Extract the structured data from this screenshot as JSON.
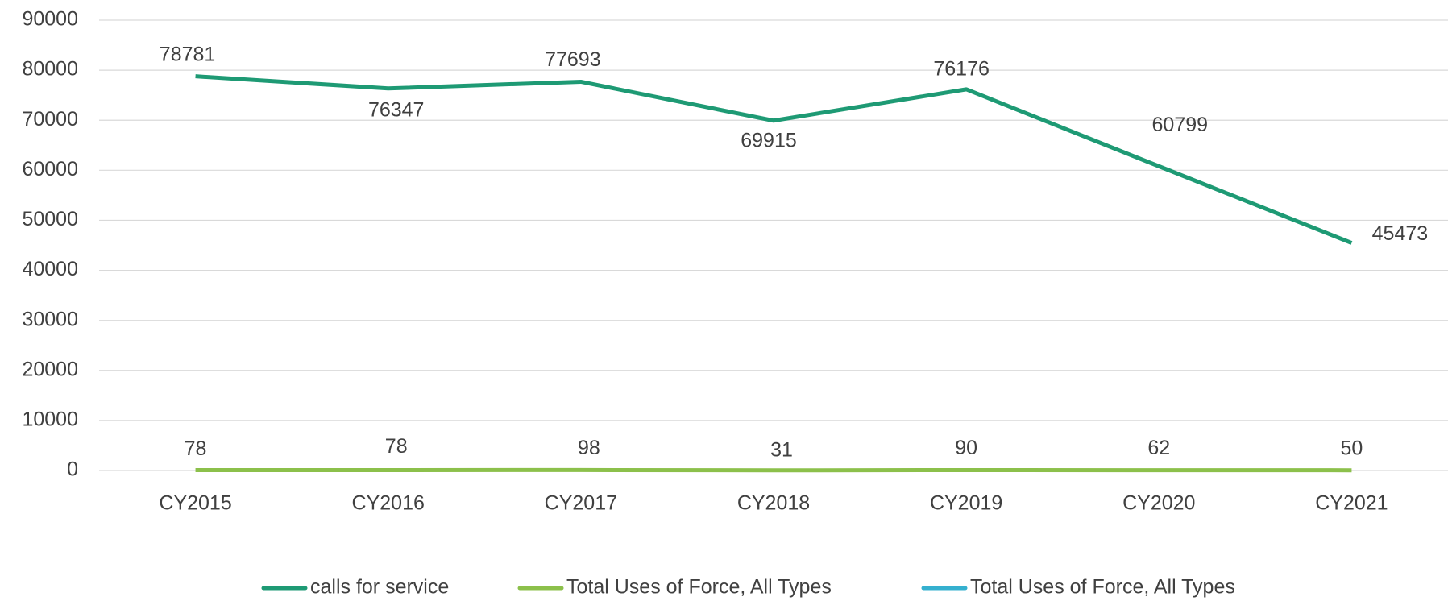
{
  "chart_data": {
    "type": "line",
    "categories": [
      "CY2015",
      "CY2016",
      "CY2017",
      "CY2018",
      "CY2019",
      "CY2020",
      "CY2021"
    ],
    "series": [
      {
        "name": "calls for service",
        "color": "#1e9a74",
        "values": [
          78781,
          76347,
          77693,
          69915,
          76176,
          60799,
          45473
        ]
      },
      {
        "name": "Total Uses of Force, All Types",
        "color": "#8cc04b",
        "values": [
          78,
          78,
          98,
          31,
          90,
          62,
          50
        ]
      },
      {
        "name": "Total Uses of Force, All Types",
        "color": "#35b0cf",
        "values": [
          null,
          null,
          null,
          null,
          null,
          null,
          null
        ]
      }
    ],
    "ylim": [
      0,
      90000
    ],
    "yticks": [
      0,
      10000,
      20000,
      30000,
      40000,
      50000,
      60000,
      70000,
      80000,
      90000
    ],
    "grid": true,
    "legend": "bottom"
  }
}
